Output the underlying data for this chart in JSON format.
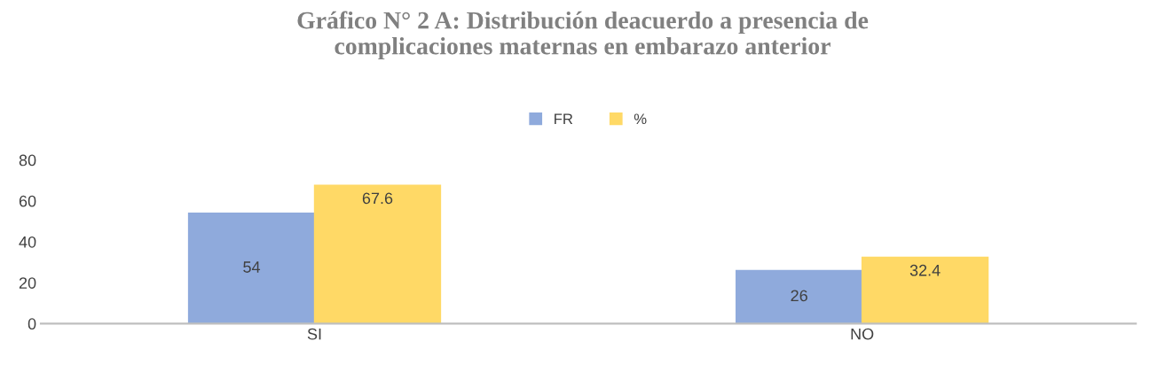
{
  "chart_data": {
    "type": "bar",
    "title": "Gráfico N° 2 A: Distribución deacuerdo a presencia de\ncomplicaciones maternas en embarazo anterior",
    "categories": [
      "SI",
      "NO"
    ],
    "series": [
      {
        "name": "FR",
        "color": "#8faadc",
        "values": [
          54,
          26
        ]
      },
      {
        "name": "%",
        "color": "#ffd966",
        "values": [
          67.6,
          32.4
        ]
      }
    ],
    "ylim": [
      0,
      80
    ],
    "yticks": [
      0,
      20,
      40,
      60,
      80
    ],
    "grid": false,
    "legend": "top",
    "data_labels": true
  }
}
